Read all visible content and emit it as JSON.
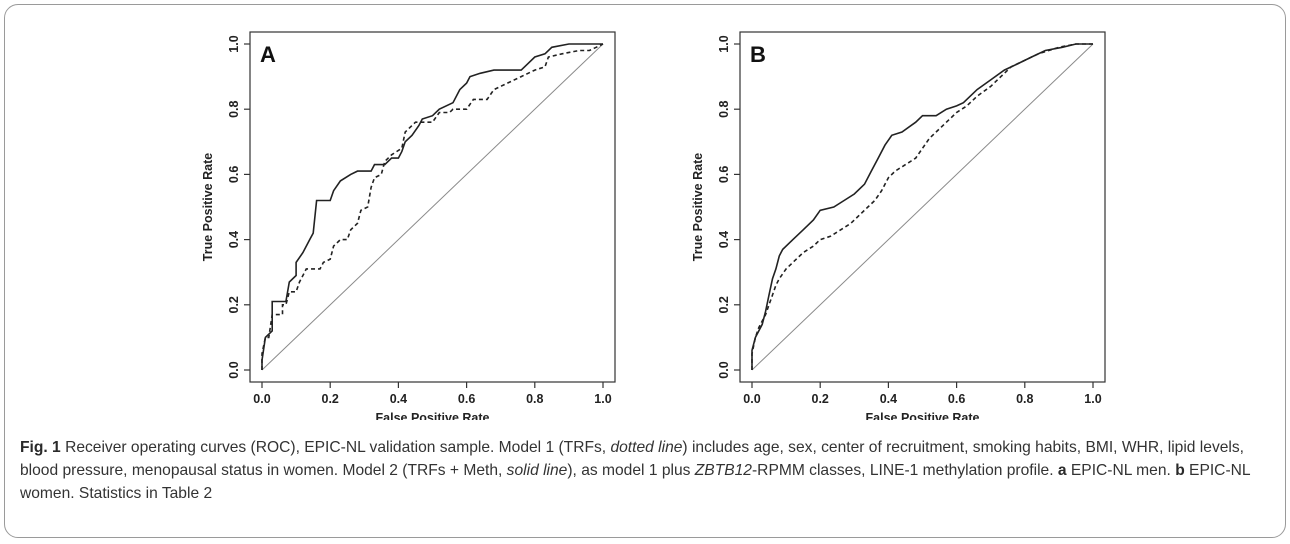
{
  "chart_data": [
    {
      "type": "line",
      "panel_label": "A",
      "xlabel": "False Positive Rate",
      "ylabel": "True Positive Rate",
      "xlim": [
        0,
        1
      ],
      "ylim": [
        0,
        1
      ],
      "x_ticks": [
        "0.0",
        "0.2",
        "0.4",
        "0.6",
        "0.8",
        "1.0"
      ],
      "y_ticks": [
        "0.0",
        "0.2",
        "0.4",
        "0.6",
        "0.8",
        "1.0"
      ],
      "series": [
        {
          "style": "dotted",
          "color": "#222222",
          "points": [
            [
              0,
              0
            ],
            [
              0,
              0.05
            ],
            [
              0.01,
              0.1
            ],
            [
              0.02,
              0.1
            ],
            [
              0.03,
              0.17
            ],
            [
              0.06,
              0.17
            ],
            [
              0.06,
              0.2
            ],
            [
              0.07,
              0.2
            ],
            [
              0.08,
              0.24
            ],
            [
              0.1,
              0.24
            ],
            [
              0.11,
              0.27
            ],
            [
              0.12,
              0.29
            ],
            [
              0.13,
              0.31
            ],
            [
              0.17,
              0.31
            ],
            [
              0.18,
              0.33
            ],
            [
              0.2,
              0.34
            ],
            [
              0.21,
              0.38
            ],
            [
              0.23,
              0.4
            ],
            [
              0.25,
              0.4
            ],
            [
              0.26,
              0.43
            ],
            [
              0.28,
              0.45
            ],
            [
              0.29,
              0.49
            ],
            [
              0.31,
              0.5
            ],
            [
              0.32,
              0.56
            ],
            [
              0.33,
              0.59
            ],
            [
              0.35,
              0.6
            ],
            [
              0.36,
              0.64
            ],
            [
              0.38,
              0.66
            ],
            [
              0.41,
              0.68
            ],
            [
              0.42,
              0.73
            ],
            [
              0.45,
              0.76
            ],
            [
              0.5,
              0.76
            ],
            [
              0.52,
              0.79
            ],
            [
              0.55,
              0.79
            ],
            [
              0.56,
              0.8
            ],
            [
              0.6,
              0.8
            ],
            [
              0.62,
              0.83
            ],
            [
              0.66,
              0.83
            ],
            [
              0.68,
              0.86
            ],
            [
              0.72,
              0.88
            ],
            [
              0.76,
              0.9
            ],
            [
              0.8,
              0.92
            ],
            [
              0.83,
              0.93
            ],
            [
              0.84,
              0.96
            ],
            [
              0.88,
              0.97
            ],
            [
              0.93,
              0.98
            ],
            [
              0.96,
              0.98
            ],
            [
              0.98,
              0.99
            ],
            [
              1,
              1
            ]
          ]
        },
        {
          "style": "solid",
          "color": "#222222",
          "points": [
            [
              0,
              0
            ],
            [
              0,
              0.03
            ],
            [
              0.01,
              0.1
            ],
            [
              0.03,
              0.12
            ],
            [
              0.03,
              0.21
            ],
            [
              0.07,
              0.21
            ],
            [
              0.08,
              0.27
            ],
            [
              0.1,
              0.29
            ],
            [
              0.1,
              0.33
            ],
            [
              0.12,
              0.36
            ],
            [
              0.14,
              0.4
            ],
            [
              0.15,
              0.42
            ],
            [
              0.16,
              0.52
            ],
            [
              0.2,
              0.52
            ],
            [
              0.21,
              0.55
            ],
            [
              0.23,
              0.58
            ],
            [
              0.26,
              0.6
            ],
            [
              0.28,
              0.61
            ],
            [
              0.32,
              0.61
            ],
            [
              0.33,
              0.63
            ],
            [
              0.36,
              0.63
            ],
            [
              0.38,
              0.65
            ],
            [
              0.4,
              0.65
            ],
            [
              0.41,
              0.67
            ],
            [
              0.42,
              0.7
            ],
            [
              0.44,
              0.72
            ],
            [
              0.46,
              0.75
            ],
            [
              0.47,
              0.77
            ],
            [
              0.5,
              0.78
            ],
            [
              0.52,
              0.8
            ],
            [
              0.56,
              0.82
            ],
            [
              0.58,
              0.86
            ],
            [
              0.6,
              0.88
            ],
            [
              0.61,
              0.9
            ],
            [
              0.64,
              0.91
            ],
            [
              0.68,
              0.92
            ],
            [
              0.76,
              0.92
            ],
            [
              0.78,
              0.94
            ],
            [
              0.8,
              0.96
            ],
            [
              0.83,
              0.97
            ],
            [
              0.85,
              0.99
            ],
            [
              0.9,
              1
            ],
            [
              1,
              1
            ]
          ]
        }
      ]
    },
    {
      "type": "line",
      "panel_label": "B",
      "xlabel": "False Positive Rate",
      "ylabel": "True Positive Rate",
      "xlim": [
        0,
        1
      ],
      "ylim": [
        0,
        1
      ],
      "x_ticks": [
        "0.0",
        "0.2",
        "0.4",
        "0.6",
        "0.8",
        "1.0"
      ],
      "y_ticks": [
        "0.0",
        "0.2",
        "0.4",
        "0.6",
        "0.8",
        "1.0"
      ],
      "series": [
        {
          "style": "dotted",
          "color": "#222222",
          "points": [
            [
              0,
              0
            ],
            [
              0,
              0.05
            ],
            [
              0.01,
              0.1
            ],
            [
              0.02,
              0.13
            ],
            [
              0.04,
              0.17
            ],
            [
              0.05,
              0.2
            ],
            [
              0.06,
              0.23
            ],
            [
              0.07,
              0.26
            ],
            [
              0.08,
              0.28
            ],
            [
              0.1,
              0.31
            ],
            [
              0.12,
              0.33
            ],
            [
              0.15,
              0.36
            ],
            [
              0.18,
              0.38
            ],
            [
              0.2,
              0.4
            ],
            [
              0.23,
              0.41
            ],
            [
              0.26,
              0.43
            ],
            [
              0.29,
              0.45
            ],
            [
              0.32,
              0.48
            ],
            [
              0.34,
              0.5
            ],
            [
              0.36,
              0.52
            ],
            [
              0.38,
              0.55
            ],
            [
              0.4,
              0.59
            ],
            [
              0.42,
              0.61
            ],
            [
              0.45,
              0.63
            ],
            [
              0.48,
              0.65
            ],
            [
              0.5,
              0.68
            ],
            [
              0.52,
              0.71
            ],
            [
              0.54,
              0.73
            ],
            [
              0.57,
              0.76
            ],
            [
              0.6,
              0.79
            ],
            [
              0.63,
              0.81
            ],
            [
              0.66,
              0.84
            ],
            [
              0.7,
              0.87
            ],
            [
              0.73,
              0.9
            ],
            [
              0.76,
              0.93
            ],
            [
              0.8,
              0.95
            ],
            [
              0.84,
              0.97
            ],
            [
              0.9,
              0.99
            ],
            [
              0.95,
              1
            ],
            [
              1,
              1
            ]
          ]
        },
        {
          "style": "solid",
          "color": "#222222",
          "points": [
            [
              0,
              0
            ],
            [
              0,
              0.06
            ],
            [
              0.01,
              0.1
            ],
            [
              0.03,
              0.14
            ],
            [
              0.04,
              0.18
            ],
            [
              0.05,
              0.23
            ],
            [
              0.06,
              0.28
            ],
            [
              0.07,
              0.31
            ],
            [
              0.08,
              0.35
            ],
            [
              0.09,
              0.37
            ],
            [
              0.12,
              0.4
            ],
            [
              0.15,
              0.43
            ],
            [
              0.18,
              0.46
            ],
            [
              0.2,
              0.49
            ],
            [
              0.24,
              0.5
            ],
            [
              0.27,
              0.52
            ],
            [
              0.3,
              0.54
            ],
            [
              0.33,
              0.57
            ],
            [
              0.35,
              0.61
            ],
            [
              0.37,
              0.65
            ],
            [
              0.39,
              0.69
            ],
            [
              0.41,
              0.72
            ],
            [
              0.44,
              0.73
            ],
            [
              0.48,
              0.76
            ],
            [
              0.5,
              0.78
            ],
            [
              0.54,
              0.78
            ],
            [
              0.57,
              0.8
            ],
            [
              0.6,
              0.81
            ],
            [
              0.62,
              0.82
            ],
            [
              0.66,
              0.86
            ],
            [
              0.7,
              0.89
            ],
            [
              0.74,
              0.92
            ],
            [
              0.78,
              0.94
            ],
            [
              0.82,
              0.96
            ],
            [
              0.86,
              0.98
            ],
            [
              0.91,
              0.99
            ],
            [
              0.95,
              1
            ],
            [
              1,
              1
            ]
          ]
        }
      ]
    }
  ],
  "caption": {
    "fig_label": "Fig. 1",
    "part1": " Receiver operating curves (ROC), EPIC-NL validation sample. Model 1 (TRFs, ",
    "dotted_line": "dotted line",
    "part2": ") includes age, sex, center of recruitment, smoking habits, BMI, WHR, lipid levels, blood pressure, menopausal status in women. Model 2 (TRFs + Meth, ",
    "solid_line": "solid line",
    "part3": "), as model 1 plus ",
    "gene": "ZBTB12",
    "part4": "-RPMM classes, LINE-1 methylation profile. ",
    "a_label": "a",
    "a_text": " EPIC-NL men. ",
    "b_label": "b",
    "b_text": " EPIC-NL women. Statistics in Table 2"
  }
}
